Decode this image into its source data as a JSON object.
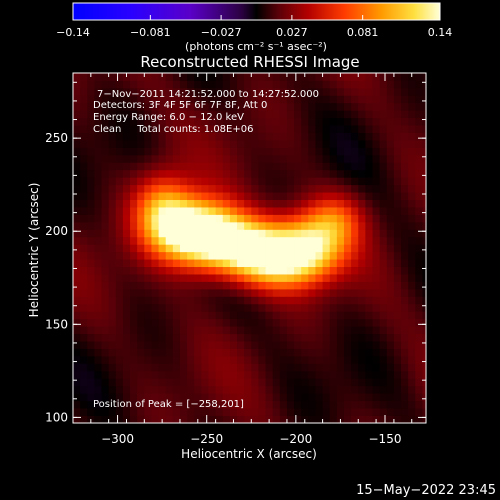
{
  "chart_data": {
    "type": "heatmap",
    "title": "Reconstructed RHESSI Image",
    "xlabel": "Heliocentric X (arcsec)",
    "ylabel": "Heliocentric Y (arcsec)",
    "xlim": [
      -325,
      -127
    ],
    "ylim": [
      97,
      285
    ],
    "xticks": [
      -300,
      -250,
      -200,
      -150
    ],
    "xtick_labels": [
      "−300",
      "−250",
      "−200",
      "−150"
    ],
    "yticks": [
      100,
      150,
      200,
      250
    ],
    "ytick_labels": [
      "100",
      "150",
      "200",
      "250"
    ],
    "colorbar": {
      "range": [
        -0.14,
        0.14
      ],
      "ticks": [
        -0.14,
        -0.081,
        -0.027,
        0.027,
        0.081,
        0.14
      ],
      "tick_labels": [
        "−0.14",
        "−0.081",
        "−0.027",
        "0.027",
        "0.081",
        "0.14"
      ],
      "units_label": "(photons cm⁻² s⁻¹ asec⁻²)"
    },
    "annotations": [
      "7−Nov−2011 14:21:52.000 to 14:27:52.000",
      "Detectors: 3F 4F 5F 6F 7F 8F, Att 0",
      "Energy Range: 6.0 − 12.0 keV",
      "Clean     Total counts: 1.08E+06"
    ],
    "peak_label": "Position of Peak = [−258,201]",
    "peak": {
      "x": -258,
      "y": 201,
      "value": 0.14
    },
    "source_components": [
      {
        "x": -258,
        "y": 201,
        "sx": 16,
        "sy": 12,
        "amp": 0.14
      },
      {
        "x": -235,
        "y": 193,
        "sx": 18,
        "sy": 11,
        "amp": 0.11
      },
      {
        "x": -212,
        "y": 185,
        "sx": 17,
        "sy": 11,
        "amp": 0.1
      },
      {
        "x": -192,
        "y": 192,
        "sx": 14,
        "sy": 12,
        "amp": 0.09
      },
      {
        "x": -178,
        "y": 206,
        "sx": 11,
        "sy": 10,
        "amp": 0.05
      },
      {
        "x": -275,
        "y": 213,
        "sx": 11,
        "sy": 13,
        "amp": 0.07
      }
    ],
    "background_level": 0.012
  },
  "footer": {
    "timestamp": "15−May−2022 23:45"
  }
}
